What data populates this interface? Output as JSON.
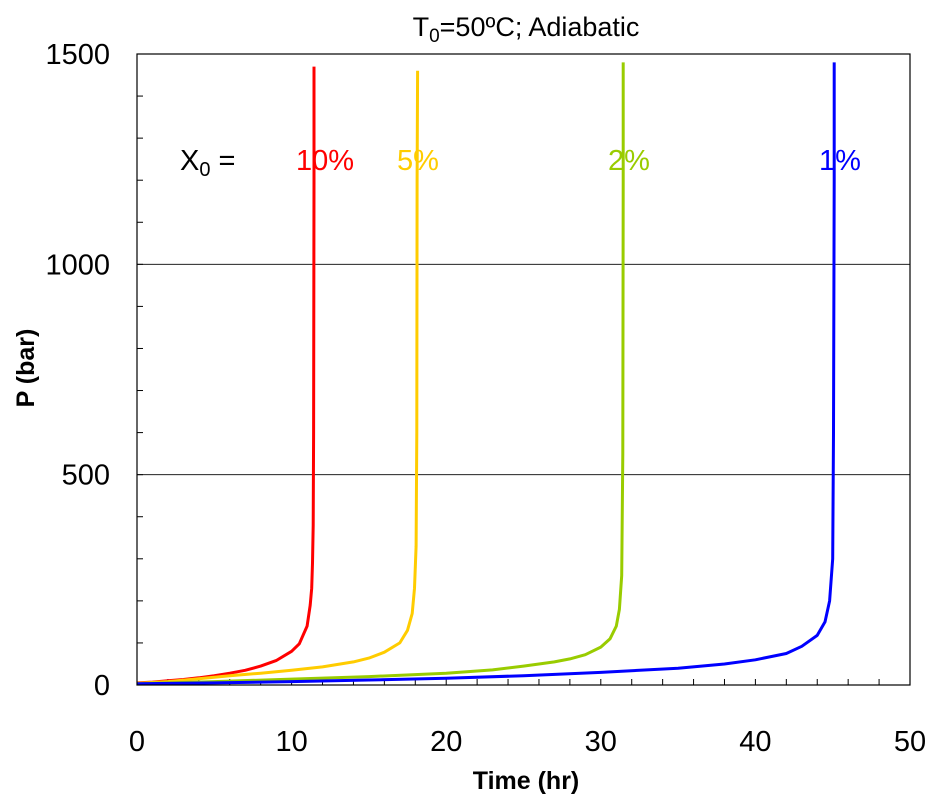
{
  "chart_data": {
    "type": "line",
    "title": {
      "base": "T",
      "sub": "0",
      "rest": "=50ºC; Adiabatic"
    },
    "xlabel": "Time (hr)",
    "ylabel": "P (bar)",
    "xlim": [
      0,
      50
    ],
    "ylim": [
      0,
      1500
    ],
    "xticks": [
      0,
      10,
      20,
      30,
      40,
      50
    ],
    "yticks": [
      0,
      500,
      1000,
      1500
    ],
    "grid": "horizontal major gridlines at 500 and 1000",
    "annotation_prefix": {
      "base": "X",
      "sub": "0",
      "rest": " ="
    },
    "series": [
      {
        "name": "10%",
        "color": "#ff0000",
        "x": [
          0,
          1,
          2,
          3,
          4,
          5,
          6,
          7,
          8,
          9,
          10,
          10.5,
          11,
          11.2,
          11.3,
          11.35,
          11.4,
          11.42,
          11.45,
          11.45
        ],
        "y": [
          5,
          7,
          10,
          13,
          17,
          22,
          28,
          35,
          45,
          58,
          80,
          98,
          140,
          190,
          230,
          290,
          380,
          600,
          1200,
          1470
        ]
      },
      {
        "name": "5%",
        "color": "#ffcc00",
        "x": [
          0,
          2,
          4,
          6,
          8,
          10,
          12,
          14,
          15,
          16,
          17,
          17.5,
          17.8,
          17.95,
          18.05,
          18.1,
          18.12,
          18.15
        ],
        "y": [
          4,
          8,
          15,
          22,
          28,
          35,
          43,
          55,
          64,
          78,
          100,
          130,
          170,
          230,
          330,
          600,
          1200,
          1460
        ]
      },
      {
        "name": "2%",
        "color": "#99cc00",
        "x": [
          0,
          5,
          10,
          15,
          20,
          23,
          25,
          27,
          28,
          29,
          30,
          30.6,
          31,
          31.2,
          31.35,
          31.42,
          31.45,
          31.45
        ],
        "y": [
          3,
          8,
          14,
          20,
          28,
          36,
          45,
          55,
          62,
          72,
          90,
          110,
          140,
          180,
          260,
          550,
          1200,
          1480
        ]
      },
      {
        "name": "1%",
        "color": "#0000ff",
        "x": [
          0,
          5,
          10,
          15,
          20,
          25,
          30,
          35,
          38,
          40,
          42,
          43,
          44,
          44.5,
          44.8,
          45,
          45.05,
          45.1,
          45.1
        ],
        "y": [
          3,
          5,
          8,
          12,
          16,
          22,
          30,
          40,
          50,
          60,
          75,
          92,
          118,
          150,
          200,
          300,
          600,
          1200,
          1480
        ]
      }
    ]
  }
}
